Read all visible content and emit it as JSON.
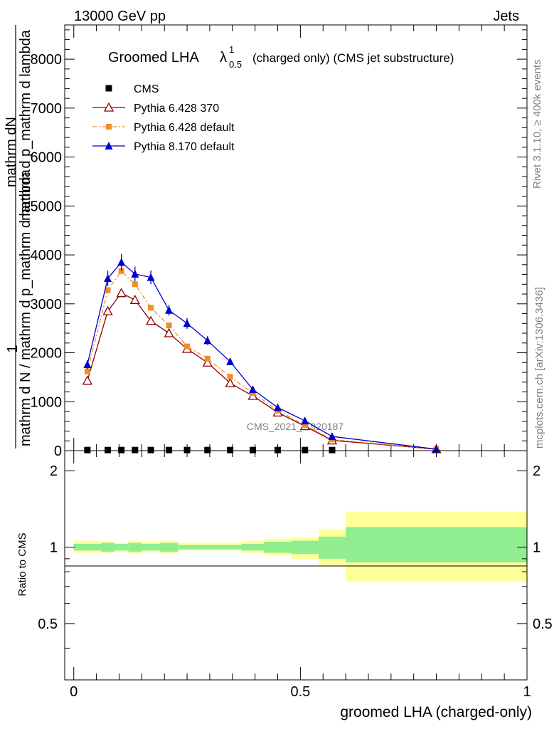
{
  "header": {
    "left": "13000 GeV pp",
    "right": "Jets"
  },
  "side": {
    "rivet": "Rivet 3.1.10, ≥ 400k events",
    "mcplots": "mcplots.cern.ch [arXiv:1306.3436]"
  },
  "watermark": "CMS_2021_I1920187",
  "legend": [
    {
      "label": "CMS",
      "marker": "square",
      "color": "#000000",
      "line": false
    },
    {
      "label": "Pythia 6.428 370",
      "marker": "triangle-open",
      "color": "#8b0000",
      "line": true,
      "dash": ""
    },
    {
      "label": "Pythia 6.428 default",
      "marker": "square-small",
      "color": "#f28c28",
      "line": true,
      "dash": "6 3 2 3"
    },
    {
      "label": "Pythia 8.170 default",
      "marker": "triangle-filled",
      "color": "#0000cc",
      "line": true,
      "dash": ""
    }
  ],
  "colors": {
    "band_inner": "#90ee90",
    "band_outer": "#ffff99"
  },
  "chart_data": [
    {
      "type": "line",
      "title_main": "Groomed LHA",
      "title_lambda": "λ",
      "title_sup": "1",
      "title_sub": "0.5",
      "title_rest": "(charged only) (CMS jet substructure)",
      "ylabel_top": "1",
      "ylabel_frac_num": "mathrm dN",
      "ylabel_frac_num2": "mathrm d p_mathrm d lambda",
      "ylabel_den": "mathrm d N / mathrm d p_mathrm d lambda",
      "ylabel_den2": "mathrm d N",
      "xlim": [
        -0.02,
        1.0
      ],
      "ylim": [
        0,
        8700
      ],
      "yticks": [
        0,
        1000,
        2000,
        3000,
        4000,
        5000,
        6000,
        7000,
        8000
      ],
      "ytick_labels": [
        "0",
        "1000",
        "2000",
        "3000",
        "4000",
        "5000",
        "6000",
        "7000",
        "8000"
      ],
      "x": [
        0.03,
        0.075,
        0.105,
        0.135,
        0.17,
        0.21,
        0.25,
        0.295,
        0.345,
        0.395,
        0.45,
        0.51,
        0.57,
        0.8
      ],
      "series": [
        {
          "name": "CMS",
          "values": [
            12,
            12,
            12,
            12,
            12,
            12,
            12,
            12,
            12,
            12,
            12,
            12,
            12,
            null
          ],
          "errors": []
        },
        {
          "name": "Pythia 6.428 370",
          "values": [
            1430,
            2850,
            3220,
            3080,
            2650,
            2400,
            2080,
            1800,
            1380,
            1120,
            780,
            500,
            210,
            30
          ],
          "errors": []
        },
        {
          "name": "Pythia 6.428 default",
          "values": [
            1620,
            3280,
            3670,
            3400,
            2920,
            2560,
            2130,
            1880,
            1510,
            1180,
            820,
            520,
            230,
            30
          ],
          "errors": []
        },
        {
          "name": "Pythia 8.170 default",
          "values": [
            1760,
            3520,
            3850,
            3610,
            3540,
            2870,
            2600,
            2250,
            1820,
            1250,
            880,
            610,
            290,
            30
          ],
          "errors": [
            90,
            160,
            170,
            150,
            140,
            110,
            110,
            90,
            70,
            60,
            50,
            40,
            20,
            10
          ]
        }
      ]
    },
    {
      "type": "area",
      "ylabel": "Ratio to CMS",
      "xlabel": "groomed LHA (charged-only)",
      "xlim": [
        -0.02,
        1.0
      ],
      "ylim": [
        0.3,
        2.4
      ],
      "log_y": true,
      "yticks": [
        0.5,
        1,
        2
      ],
      "ytick_labels": [
        "0.5",
        "1",
        "2"
      ],
      "xticks": [
        0,
        0.5,
        1
      ],
      "xtick_labels": [
        "0",
        "0.5",
        "1"
      ],
      "bins": [
        0.0,
        0.06,
        0.09,
        0.12,
        0.15,
        0.19,
        0.23,
        0.27,
        0.32,
        0.37,
        0.42,
        0.48,
        0.54,
        0.6,
        1.0
      ],
      "band_inner_up": [
        1.03,
        1.04,
        1.03,
        1.04,
        1.03,
        1.04,
        1.02,
        1.02,
        1.02,
        1.03,
        1.05,
        1.06,
        1.1,
        1.2
      ],
      "band_inner_down": [
        0.97,
        0.96,
        0.97,
        0.96,
        0.97,
        0.96,
        0.98,
        0.98,
        0.98,
        0.97,
        0.95,
        0.94,
        0.9,
        0.87
      ],
      "band_outer_up": [
        1.06,
        1.05,
        1.04,
        1.06,
        1.05,
        1.06,
        1.04,
        1.04,
        1.04,
        1.06,
        1.08,
        1.09,
        1.17,
        1.38
      ],
      "band_outer_down": [
        0.95,
        0.95,
        0.96,
        0.94,
        0.96,
        0.94,
        0.97,
        0.97,
        0.97,
        0.95,
        0.93,
        0.9,
        0.84,
        0.73
      ]
    }
  ]
}
